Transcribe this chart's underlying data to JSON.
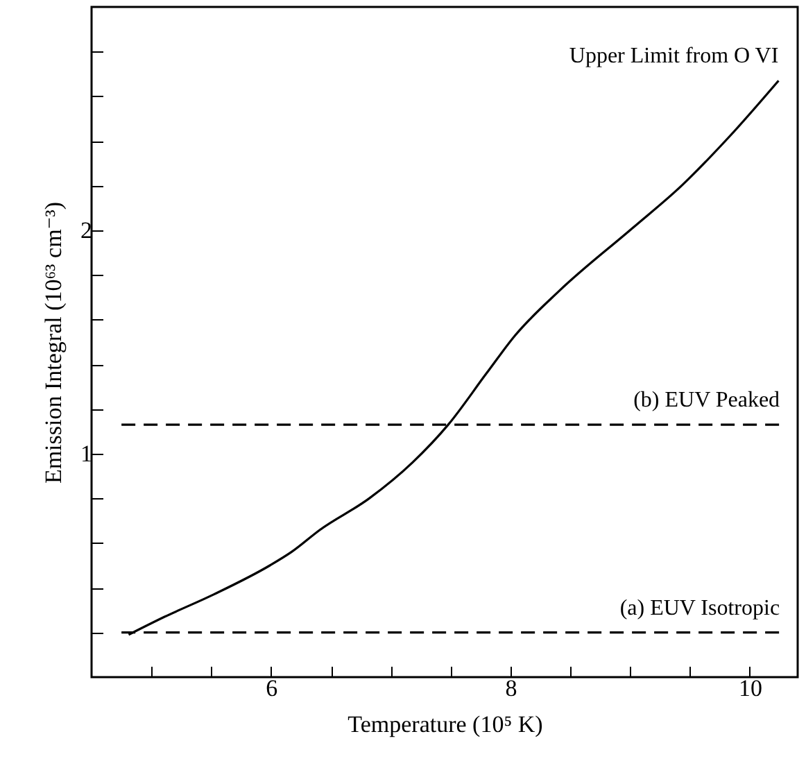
{
  "chart_data": {
    "type": "line",
    "xlabel": "Temperature (10⁵ K)",
    "ylabel": "Emission Integral (10⁶³ cm⁻³)",
    "xlim": [
      4.5,
      10.4
    ],
    "ylim": [
      0,
      3
    ],
    "xticks": [
      {
        "value": 5,
        "label": null
      },
      {
        "value": 5.5,
        "label": null
      },
      6,
      {
        "value": 6.5,
        "label": null
      },
      {
        "value": 7,
        "label": null
      },
      {
        "value": 7.5,
        "label": null
      },
      8,
      {
        "value": 8.5,
        "label": null
      },
      {
        "value": 9,
        "label": null
      },
      {
        "value": 9.5,
        "label": null
      },
      10
    ],
    "yticks": [
      {
        "value": 0.2,
        "label": null
      },
      {
        "value": 0.4,
        "label": null
      },
      {
        "value": 0.6,
        "label": null
      },
      {
        "value": 0.8,
        "label": null
      },
      1,
      {
        "value": 1.2,
        "label": null
      },
      {
        "value": 1.4,
        "label": null
      },
      {
        "value": 1.6,
        "label": null
      },
      {
        "value": 1.8,
        "label": null
      },
      2,
      {
        "value": 2.2,
        "label": null
      },
      {
        "value": 2.4,
        "label": null
      },
      {
        "value": 2.6,
        "label": null
      },
      {
        "value": 2.8,
        "label": null
      }
    ],
    "grid": false,
    "series": [
      {
        "name": "Upper Limit from O VI",
        "color": "#000000",
        "line_style": "solid",
        "x": [
          4.81,
          5.11,
          5.52,
          5.99,
          6.17,
          6.41,
          6.82,
          7.18,
          7.48,
          7.8,
          8.04,
          8.41,
          9.02,
          9.43,
          9.83,
          10.24
        ],
        "values": [
          0.19,
          0.27,
          0.37,
          0.5,
          0.56,
          0.66,
          0.8,
          0.96,
          1.13,
          1.36,
          1.53,
          1.73,
          2.01,
          2.2,
          2.42,
          2.67
        ]
      },
      {
        "name": "(b) EUV Peaked",
        "color": "#000000",
        "line_style": "dashed",
        "x": [
          4.75,
          10.25
        ],
        "values": [
          1.13,
          1.13
        ]
      },
      {
        "name": "(a) EUV Isotropic",
        "color": "#000000",
        "line_style": "dashed",
        "x": [
          4.75,
          10.25
        ],
        "values": [
          0.2,
          0.2
        ]
      }
    ]
  }
}
